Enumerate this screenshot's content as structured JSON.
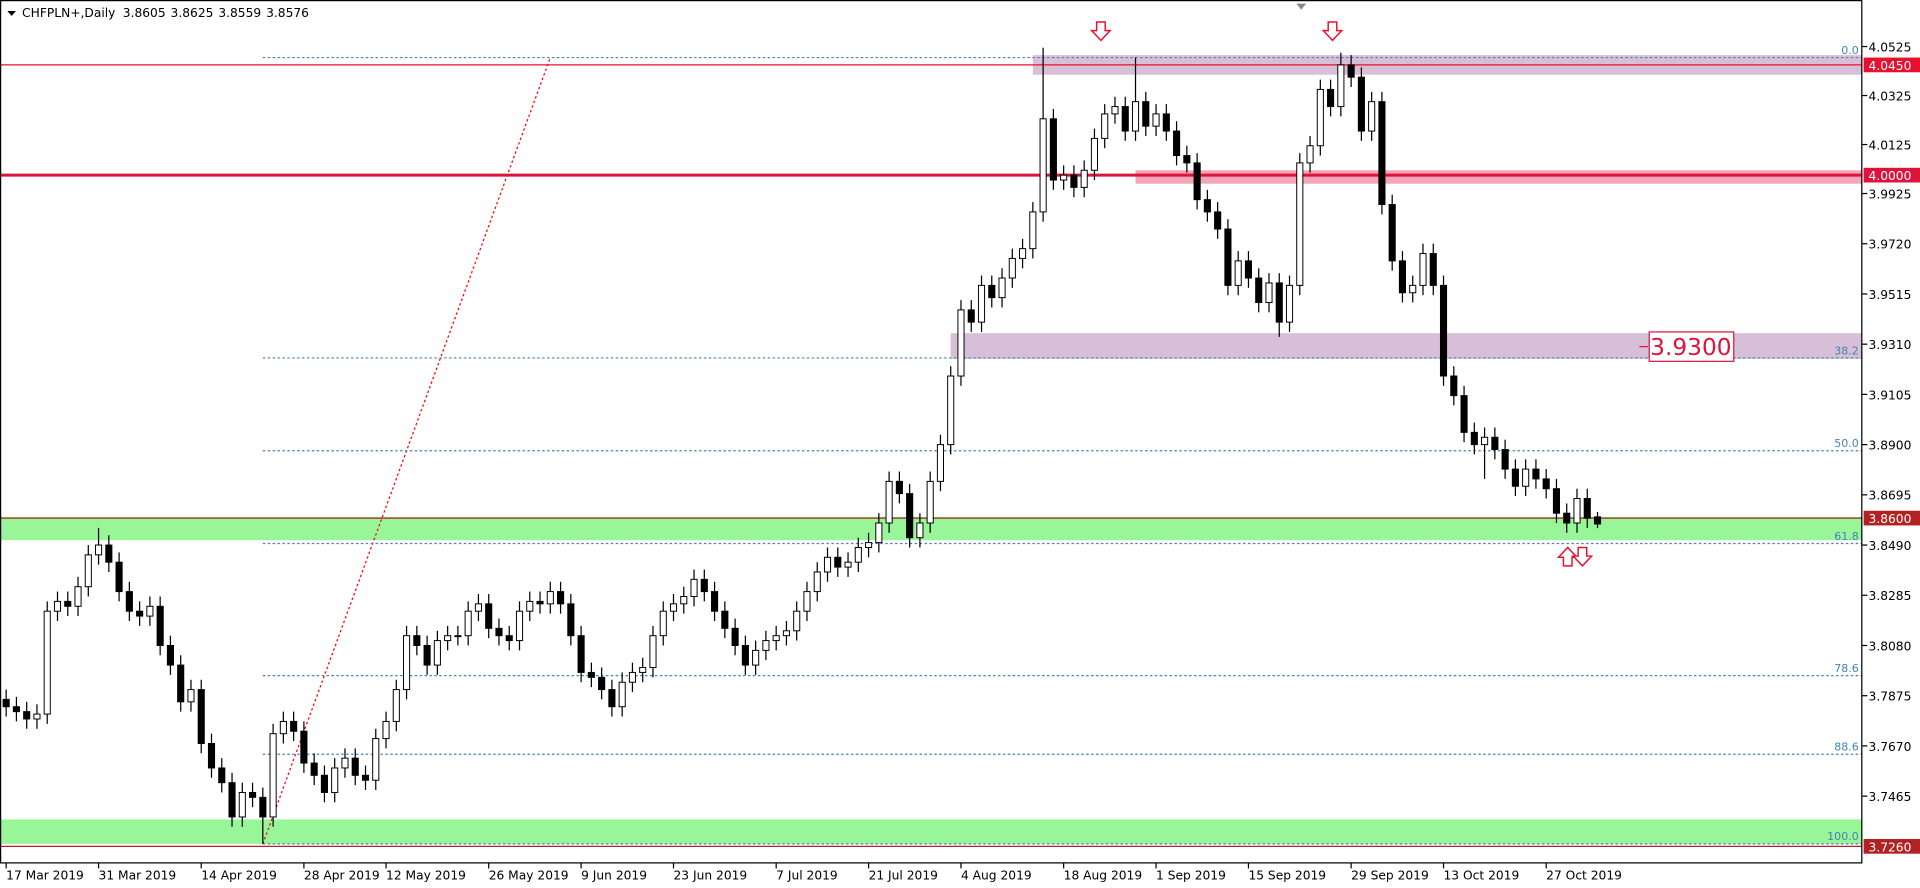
{
  "chart_data": {
    "type": "candlestick",
    "title": "CHFPLN+,Daily",
    "ylim": [
      3.719,
      4.0715
    ],
    "xlim": [
      -0.6,
      180.8
    ],
    "yticks": [
      4.0525,
      4.0325,
      4.0125,
      3.9925,
      {
        "value": 3.972,
        "label": "3.9720"
      },
      3.9515,
      {
        "value": 3.931,
        "label": "3.9310"
      },
      3.9105,
      {
        "value": 3.89,
        "label": "3.8900"
      },
      3.8695,
      {
        "value": 3.849,
        "label": "3.8490"
      },
      3.8285,
      {
        "value": 3.808,
        "label": "3.8080"
      },
      3.7875,
      {
        "value": 3.767,
        "label": "3.7670"
      },
      3.7465
    ],
    "xticks": [
      {
        "value": 0,
        "label": "17 Mar 2019"
      },
      {
        "value": 9,
        "label": "31 Mar 2019"
      },
      {
        "value": 19,
        "label": "14 Apr 2019"
      },
      {
        "value": 29,
        "label": "28 Apr 2019"
      },
      {
        "value": 37,
        "label": "12 May 2019"
      },
      {
        "value": 47,
        "label": "26 May 2019"
      },
      {
        "value": 56,
        "label": "9 Jun 2019"
      },
      {
        "value": 65,
        "label": "23 Jun 2019"
      },
      {
        "value": 75,
        "label": "7 Jul 2019"
      },
      {
        "value": 84,
        "label": "21 Jul 2019"
      },
      {
        "value": 93,
        "label": "4 Aug 2019"
      },
      {
        "value": 103,
        "label": "18 Aug 2019"
      },
      {
        "value": 112,
        "label": "1 Sep 2019"
      },
      {
        "value": 121,
        "label": "15 Sep 2019"
      },
      {
        "value": 131,
        "label": "29 Sep 2019"
      },
      {
        "value": 140,
        "label": "13 Oct 2019"
      },
      {
        "value": 150,
        "label": "27 Oct 2019"
      }
    ],
    "bull_color": "#ffffff",
    "bear_color": "#000000",
    "candles": [
      [
        3.786,
        3.79,
        3.779,
        3.783
      ],
      [
        3.783,
        3.787,
        3.777,
        3.781
      ],
      [
        3.781,
        3.785,
        3.774,
        3.778
      ],
      [
        3.778,
        3.784,
        3.774,
        3.78
      ],
      [
        3.78,
        3.826,
        3.776,
        3.822
      ],
      [
        3.822,
        3.83,
        3.818,
        3.826
      ],
      [
        3.826,
        3.83,
        3.82,
        3.824
      ],
      [
        3.824,
        3.836,
        3.82,
        3.832
      ],
      [
        3.832,
        3.849,
        3.828,
        3.845
      ],
      [
        3.845,
        3.856,
        3.841,
        3.849
      ],
      [
        3.849,
        3.853,
        3.838,
        3.842
      ],
      [
        3.842,
        3.846,
        3.826,
        3.83
      ],
      [
        3.83,
        3.834,
        3.818,
        3.822
      ],
      [
        3.822,
        3.826,
        3.816,
        3.82
      ],
      [
        3.82,
        3.828,
        3.816,
        3.824
      ],
      [
        3.824,
        3.828,
        3.804,
        3.808
      ],
      [
        3.808,
        3.812,
        3.796,
        3.8
      ],
      [
        3.8,
        3.804,
        3.781,
        3.785
      ],
      [
        3.785,
        3.794,
        3.781,
        3.79
      ],
      [
        3.79,
        3.794,
        3.764,
        3.768
      ],
      [
        3.768,
        3.772,
        3.754,
        3.758
      ],
      [
        3.758,
        3.762,
        3.748,
        3.752
      ],
      [
        3.752,
        3.756,
        3.734,
        3.738
      ],
      [
        3.738,
        3.752,
        3.734,
        3.748
      ],
      [
        3.748,
        3.752,
        3.742,
        3.746
      ],
      [
        3.746,
        3.75,
        3.727,
        3.738
      ],
      [
        3.738,
        3.776,
        3.734,
        3.772
      ],
      [
        3.772,
        3.781,
        3.768,
        3.777
      ],
      [
        3.777,
        3.781,
        3.769,
        3.773
      ],
      [
        3.773,
        3.777,
        3.756,
        3.76
      ],
      [
        3.76,
        3.764,
        3.751,
        3.755
      ],
      [
        3.755,
        3.759,
        3.744,
        3.748
      ],
      [
        3.748,
        3.762,
        3.744,
        3.758
      ],
      [
        3.758,
        3.766,
        3.754,
        3.762
      ],
      [
        3.762,
        3.766,
        3.751,
        3.755
      ],
      [
        3.755,
        3.759,
        3.749,
        3.753
      ],
      [
        3.753,
        3.774,
        3.749,
        3.77
      ],
      [
        3.77,
        3.781,
        3.766,
        3.777
      ],
      [
        3.777,
        3.794,
        3.773,
        3.79
      ],
      [
        3.79,
        3.816,
        3.786,
        3.812
      ],
      [
        3.812,
        3.816,
        3.804,
        3.808
      ],
      [
        3.808,
        3.812,
        3.796,
        3.8
      ],
      [
        3.8,
        3.814,
        3.796,
        3.81
      ],
      [
        3.81,
        3.816,
        3.806,
        3.812
      ],
      [
        3.812,
        3.816,
        3.808,
        3.812
      ],
      [
        3.812,
        3.826,
        3.808,
        3.822
      ],
      [
        3.822,
        3.829,
        3.818,
        3.825
      ],
      [
        3.825,
        3.829,
        3.811,
        3.815
      ],
      [
        3.815,
        3.819,
        3.808,
        3.812
      ],
      [
        3.812,
        3.816,
        3.806,
        3.81
      ],
      [
        3.81,
        3.826,
        3.806,
        3.822
      ],
      [
        3.822,
        3.83,
        3.818,
        3.826
      ],
      [
        3.826,
        3.83,
        3.821,
        3.825
      ],
      [
        3.825,
        3.834,
        3.821,
        3.83
      ],
      [
        3.83,
        3.834,
        3.821,
        3.825
      ],
      [
        3.825,
        3.829,
        3.808,
        3.812
      ],
      [
        3.812,
        3.816,
        3.793,
        3.797
      ],
      [
        3.797,
        3.801,
        3.791,
        3.795
      ],
      [
        3.795,
        3.799,
        3.786,
        3.79
      ],
      [
        3.79,
        3.794,
        3.779,
        3.783
      ],
      [
        3.783,
        3.797,
        3.779,
        3.793
      ],
      [
        3.793,
        3.801,
        3.789,
        3.797
      ],
      [
        3.797,
        3.803,
        3.793,
        3.799
      ],
      [
        3.799,
        3.816,
        3.795,
        3.812
      ],
      [
        3.812,
        3.826,
        3.808,
        3.822
      ],
      [
        3.822,
        3.829,
        3.818,
        3.825
      ],
      [
        3.825,
        3.832,
        3.821,
        3.828
      ],
      [
        3.828,
        3.839,
        3.824,
        3.835
      ],
      [
        3.835,
        3.839,
        3.826,
        3.83
      ],
      [
        3.83,
        3.834,
        3.818,
        3.822
      ],
      [
        3.822,
        3.826,
        3.811,
        3.815
      ],
      [
        3.815,
        3.819,
        3.804,
        3.808
      ],
      [
        3.808,
        3.812,
        3.796,
        3.8
      ],
      [
        3.8,
        3.81,
        3.796,
        3.806
      ],
      [
        3.806,
        3.814,
        3.802,
        3.81
      ],
      [
        3.81,
        3.816,
        3.806,
        3.812
      ],
      [
        3.812,
        3.818,
        3.808,
        3.814
      ],
      [
        3.814,
        3.826,
        3.81,
        3.822
      ],
      [
        3.822,
        3.834,
        3.818,
        3.83
      ],
      [
        3.83,
        3.842,
        3.826,
        3.838
      ],
      [
        3.838,
        3.848,
        3.834,
        3.844
      ],
      [
        3.844,
        3.848,
        3.836,
        3.84
      ],
      [
        3.84,
        3.846,
        3.836,
        3.842
      ],
      [
        3.842,
        3.852,
        3.838,
        3.848
      ],
      [
        3.848,
        3.854,
        3.844,
        3.85
      ],
      [
        3.85,
        3.862,
        3.846,
        3.858
      ],
      [
        3.858,
        3.879,
        3.854,
        3.875
      ],
      [
        3.875,
        3.879,
        3.866,
        3.87
      ],
      [
        3.87,
        3.874,
        3.848,
        3.852
      ],
      [
        3.852,
        3.862,
        3.848,
        3.858
      ],
      [
        3.858,
        3.879,
        3.854,
        3.875
      ],
      [
        3.875,
        3.894,
        3.871,
        3.89
      ],
      [
        3.89,
        3.922,
        3.886,
        3.918
      ],
      [
        3.918,
        3.949,
        3.914,
        3.945
      ],
      [
        3.945,
        3.949,
        3.936,
        3.94
      ],
      [
        3.94,
        3.959,
        3.936,
        3.955
      ],
      [
        3.955,
        3.959,
        3.946,
        3.95
      ],
      [
        3.95,
        3.962,
        3.946,
        3.958
      ],
      [
        3.958,
        3.97,
        3.954,
        3.966
      ],
      [
        3.966,
        3.974,
        3.962,
        3.97
      ],
      [
        3.97,
        3.989,
        3.966,
        3.985
      ],
      [
        3.985,
        4.052,
        3.981,
        4.023
      ],
      [
        4.023,
        4.027,
        3.994,
        3.998
      ],
      [
        3.998,
        4.004,
        3.994,
        4.0
      ],
      [
        4.0,
        4.004,
        3.991,
        3.995
      ],
      [
        3.995,
        4.006,
        3.991,
        4.002
      ],
      [
        4.002,
        4.019,
        3.998,
        4.015
      ],
      [
        4.015,
        4.029,
        4.011,
        4.025
      ],
      [
        4.025,
        4.032,
        4.021,
        4.028
      ],
      [
        4.028,
        4.032,
        4.014,
        4.018
      ],
      [
        4.018,
        4.048,
        4.014,
        4.03
      ],
      [
        4.03,
        4.034,
        4.016,
        4.02
      ],
      [
        4.02,
        4.029,
        4.016,
        4.025
      ],
      [
        4.025,
        4.029,
        4.014,
        4.018
      ],
      [
        4.018,
        4.022,
        4.004,
        4.008
      ],
      [
        4.008,
        4.012,
        4.001,
        4.005
      ],
      [
        4.005,
        4.009,
        3.986,
        3.99
      ],
      [
        3.99,
        3.994,
        3.981,
        3.985
      ],
      [
        3.985,
        3.989,
        3.974,
        3.978
      ],
      [
        3.978,
        3.982,
        3.951,
        3.955
      ],
      [
        3.955,
        3.969,
        3.951,
        3.965
      ],
      [
        3.965,
        3.969,
        3.954,
        3.958
      ],
      [
        3.958,
        3.962,
        3.944,
        3.948
      ],
      [
        3.948,
        3.96,
        3.944,
        3.956
      ],
      [
        3.956,
        3.96,
        3.934,
        3.94
      ],
      [
        3.94,
        3.959,
        3.936,
        3.955
      ],
      [
        3.955,
        4.009,
        3.951,
        4.005
      ],
      [
        4.005,
        4.016,
        4.001,
        4.012
      ],
      [
        4.012,
        4.039,
        4.008,
        4.035
      ],
      [
        4.035,
        4.039,
        4.024,
        4.028
      ],
      [
        4.028,
        4.05,
        4.024,
        4.045
      ],
      [
        4.045,
        4.049,
        4.036,
        4.04
      ],
      [
        4.04,
        4.044,
        4.014,
        4.018
      ],
      [
        4.018,
        4.034,
        4.014,
        4.03
      ],
      [
        4.03,
        4.034,
        3.984,
        3.988
      ],
      [
        3.988,
        3.992,
        3.961,
        3.965
      ],
      [
        3.965,
        3.969,
        3.948,
        3.952
      ],
      [
        3.952,
        3.959,
        3.948,
        3.955
      ],
      [
        3.955,
        3.972,
        3.951,
        3.968
      ],
      [
        3.968,
        3.972,
        3.951,
        3.955
      ],
      [
        3.955,
        3.959,
        3.914,
        3.918
      ],
      [
        3.918,
        3.922,
        3.906,
        3.91
      ],
      [
        3.91,
        3.914,
        3.891,
        3.895
      ],
      [
        3.895,
        3.899,
        3.886,
        3.89
      ],
      [
        3.89,
        3.897,
        3.876,
        3.893
      ],
      [
        3.893,
        3.897,
        3.884,
        3.888
      ],
      [
        3.888,
        3.892,
        3.876,
        3.88
      ],
      [
        3.88,
        3.884,
        3.869,
        3.873
      ],
      [
        3.873,
        3.884,
        3.869,
        3.88
      ],
      [
        3.88,
        3.884,
        3.872,
        3.876
      ],
      [
        3.876,
        3.88,
        3.868,
        3.872
      ],
      [
        3.872,
        3.876,
        3.858,
        3.862
      ],
      [
        3.862,
        3.866,
        3.854,
        3.858
      ],
      [
        3.858,
        3.872,
        3.854,
        3.868
      ],
      [
        3.868,
        3.872,
        3.856,
        3.86
      ],
      [
        3.8605,
        3.8625,
        3.8559,
        3.8576
      ]
    ],
    "zones": [
      {
        "from": 4.041,
        "to": 4.049,
        "start": 100,
        "color": "#d8bfd8"
      },
      {
        "from": 3.9965,
        "to": 4.002,
        "start": 110,
        "color": "#f4a6b8"
      },
      {
        "from": 3.925,
        "to": 3.9355,
        "start": 92,
        "color": "#d8bfd8"
      },
      {
        "from": 3.851,
        "to": 3.8605,
        "color": "#98f598"
      },
      {
        "from": 3.727,
        "to": 3.737,
        "color": "#98f598"
      }
    ],
    "price_lines": [
      {
        "value": 4.045,
        "label": "4.0450",
        "color": "#e8102f",
        "width": 1
      },
      {
        "value": 4.0,
        "label": "4.0000",
        "color": "#dc143c",
        "width": 2.5
      },
      {
        "value": 3.86,
        "label": "3.8600",
        "color": "#b22222",
        "width": 1
      },
      {
        "value": 3.726,
        "label": "3.7260",
        "color": "#b22222",
        "width": 1
      }
    ],
    "fibonacci": {
      "from": 25,
      "to": 53,
      "low": 3.727,
      "high": 4.048,
      "color": "#4682b4",
      "levels": [
        {
          "value": 0,
          "label": "0.0"
        },
        38.2,
        {
          "value": 50,
          "label": "50.0"
        },
        61.8,
        78.6,
        88.6,
        {
          "value": 100,
          "label": "100.0"
        }
      ]
    },
    "annotations": [
      {
        "text": "3.9300",
        "value": 3.93,
        "color": "#dc143c"
      }
    ]
  }
}
